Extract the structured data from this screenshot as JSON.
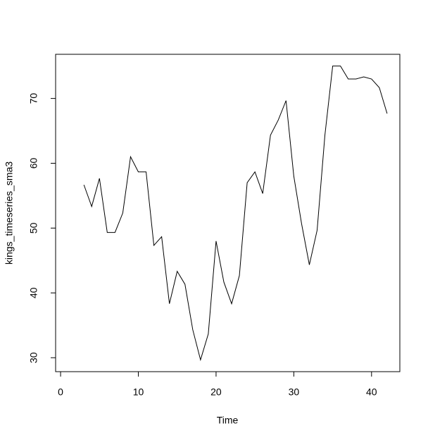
{
  "chart_data": {
    "type": "line",
    "x_label": "Time",
    "y_label": "kings_timeseries_sma3",
    "x": [
      1,
      2,
      3,
      4,
      5,
      6,
      7,
      8,
      9,
      10,
      11,
      12,
      13,
      14,
      15,
      16,
      17,
      18,
      19,
      20,
      21,
      22,
      23,
      24,
      25,
      26,
      27,
      28,
      29,
      30,
      31,
      32,
      33,
      34,
      35,
      36,
      37,
      38,
      39,
      40,
      41,
      42
    ],
    "series": [
      {
        "color": "#000000",
        "values": [
          null,
          null,
          56.67,
          53.33,
          57.67,
          49.33,
          49.33,
          52.33,
          61,
          58.67,
          58.67,
          47.33,
          48.67,
          38.33,
          43.33,
          41.33,
          34.33,
          29.67,
          33.67,
          48,
          41.67,
          38.33,
          42.67,
          57,
          58.67,
          55.33,
          64.33,
          66.67,
          69.67,
          58,
          50.67,
          44.33,
          49.67,
          64.33,
          75,
          75,
          73,
          73,
          73.33,
          73,
          71.67,
          67.67
        ]
      }
    ],
    "xlim": [
      -0.64,
      43.64
    ],
    "ylim": [
      27.85,
      76.81
    ],
    "xticks": [
      0,
      10,
      20,
      30,
      40
    ],
    "yticks": [
      30,
      40,
      50,
      60,
      70
    ]
  }
}
